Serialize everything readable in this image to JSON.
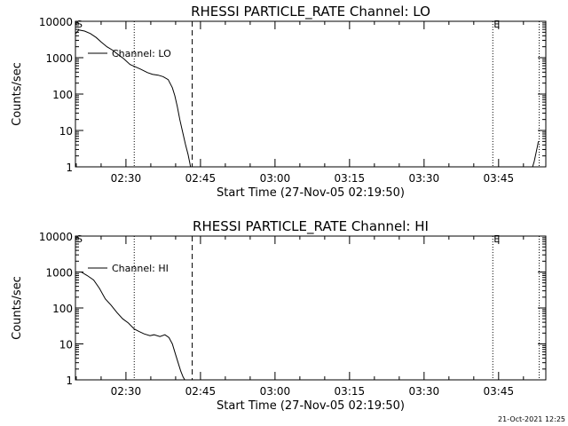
{
  "chart_data": [
    {
      "type": "line",
      "title": "RHESSI PARTICLE_RATE Channel: LO",
      "xlabel": "Start Time (27-Nov-05 02:19:50)",
      "ylabel": "Counts/sec",
      "yscale": "log",
      "ylim": [
        1,
        10000
      ],
      "xlim": [
        "02:19:50",
        "03:54:30"
      ],
      "y_ticks": [
        "1",
        "10",
        "100",
        "1000",
        "10000"
      ],
      "x_ticks": [
        "02:30",
        "02:45",
        "03:00",
        "03:15",
        "03:30",
        "03:45"
      ],
      "legend": "Channel: LO",
      "legend_position": "top-left",
      "markers": [
        {
          "label": "S",
          "x": "02:19:50",
          "style": "none"
        },
        {
          "label": "",
          "x": "02:31:40",
          "style": "dotted"
        },
        {
          "label": "",
          "x": "02:43:20",
          "style": "dashed"
        },
        {
          "label": "E",
          "x": "03:43:50",
          "style": "dotted"
        },
        {
          "label": "",
          "x": "03:53:10",
          "style": "dotted"
        }
      ],
      "series": [
        {
          "name": "Channel: LO",
          "segments": [
            {
              "x": [
                "02:19:50",
                "02:20:30",
                "02:21:40",
                "02:22:50",
                "02:24:00",
                "02:25:00",
                "02:26:10",
                "02:27:20",
                "02:28:30",
                "02:29:30",
                "02:30:50",
                "02:32:00",
                "02:33:00",
                "02:34:20",
                "02:35:20",
                "02:36:30",
                "02:37:30",
                "02:38:30",
                "02:39:20",
                "02:39:50",
                "02:40:20",
                "02:40:50",
                "02:41:30",
                "02:42:00",
                "02:42:30",
                "02:42:50",
                "02:43:00"
              ],
              "y": [
                4500,
                5800,
                5400,
                4600,
                3600,
                2700,
                2000,
                1600,
                1200,
                950,
                650,
                550,
                480,
                390,
                350,
                330,
                300,
                250,
                150,
                90,
                45,
                20,
                8,
                4,
                2.2,
                1.3,
                1
              ]
            },
            {
              "x": [
                "03:51:50",
                "03:52:10",
                "03:52:30",
                "03:52:50",
                "03:53:00"
              ],
              "y": [
                1,
                1.4,
                2.3,
                3.8,
                5
              ]
            }
          ]
        }
      ]
    },
    {
      "type": "line",
      "title": "RHESSI PARTICLE_RATE Channel: HI",
      "xlabel": "Start Time (27-Nov-05 02:19:50)",
      "ylabel": "Counts/sec",
      "yscale": "log",
      "ylim": [
        1,
        10000
      ],
      "xlim": [
        "02:19:50",
        "03:54:30"
      ],
      "y_ticks": [
        "1",
        "10",
        "100",
        "1000",
        "10000"
      ],
      "x_ticks": [
        "02:30",
        "02:45",
        "03:00",
        "03:15",
        "03:30",
        "03:45"
      ],
      "legend": "Channel: HI",
      "legend_position": "top-left",
      "markers": [
        {
          "label": "S",
          "x": "02:19:50",
          "style": "none"
        },
        {
          "label": "",
          "x": "02:31:40",
          "style": "dotted"
        },
        {
          "label": "",
          "x": "02:43:20",
          "style": "dashed"
        },
        {
          "label": "E",
          "x": "03:43:50",
          "style": "dotted"
        },
        {
          "label": "",
          "x": "03:53:10",
          "style": "dotted"
        }
      ],
      "series": [
        {
          "name": "Channel: HI",
          "segments": [
            {
              "x": [
                "02:19:50",
                "02:21:00",
                "02:22:10",
                "02:23:30",
                "02:24:40",
                "02:25:50",
                "02:27:00",
                "02:28:10",
                "02:29:20",
                "02:30:30",
                "02:31:40",
                "02:32:40",
                "02:33:40",
                "02:34:50",
                "02:35:40",
                "02:36:50",
                "02:37:50",
                "02:38:40",
                "02:39:20",
                "02:40:00",
                "02:40:30",
                "02:41:00",
                "02:41:30",
                "02:41:50"
              ],
              "y": [
                1000,
                1000,
                800,
                600,
                350,
                180,
                120,
                75,
                50,
                38,
                26,
                22,
                19,
                17,
                18,
                16,
                18,
                15,
                10,
                5,
                3,
                1.8,
                1.2,
                1
              ]
            }
          ]
        }
      ]
    }
  ],
  "footer": {
    "timestamp": "21-Oct-2021 12:25"
  }
}
